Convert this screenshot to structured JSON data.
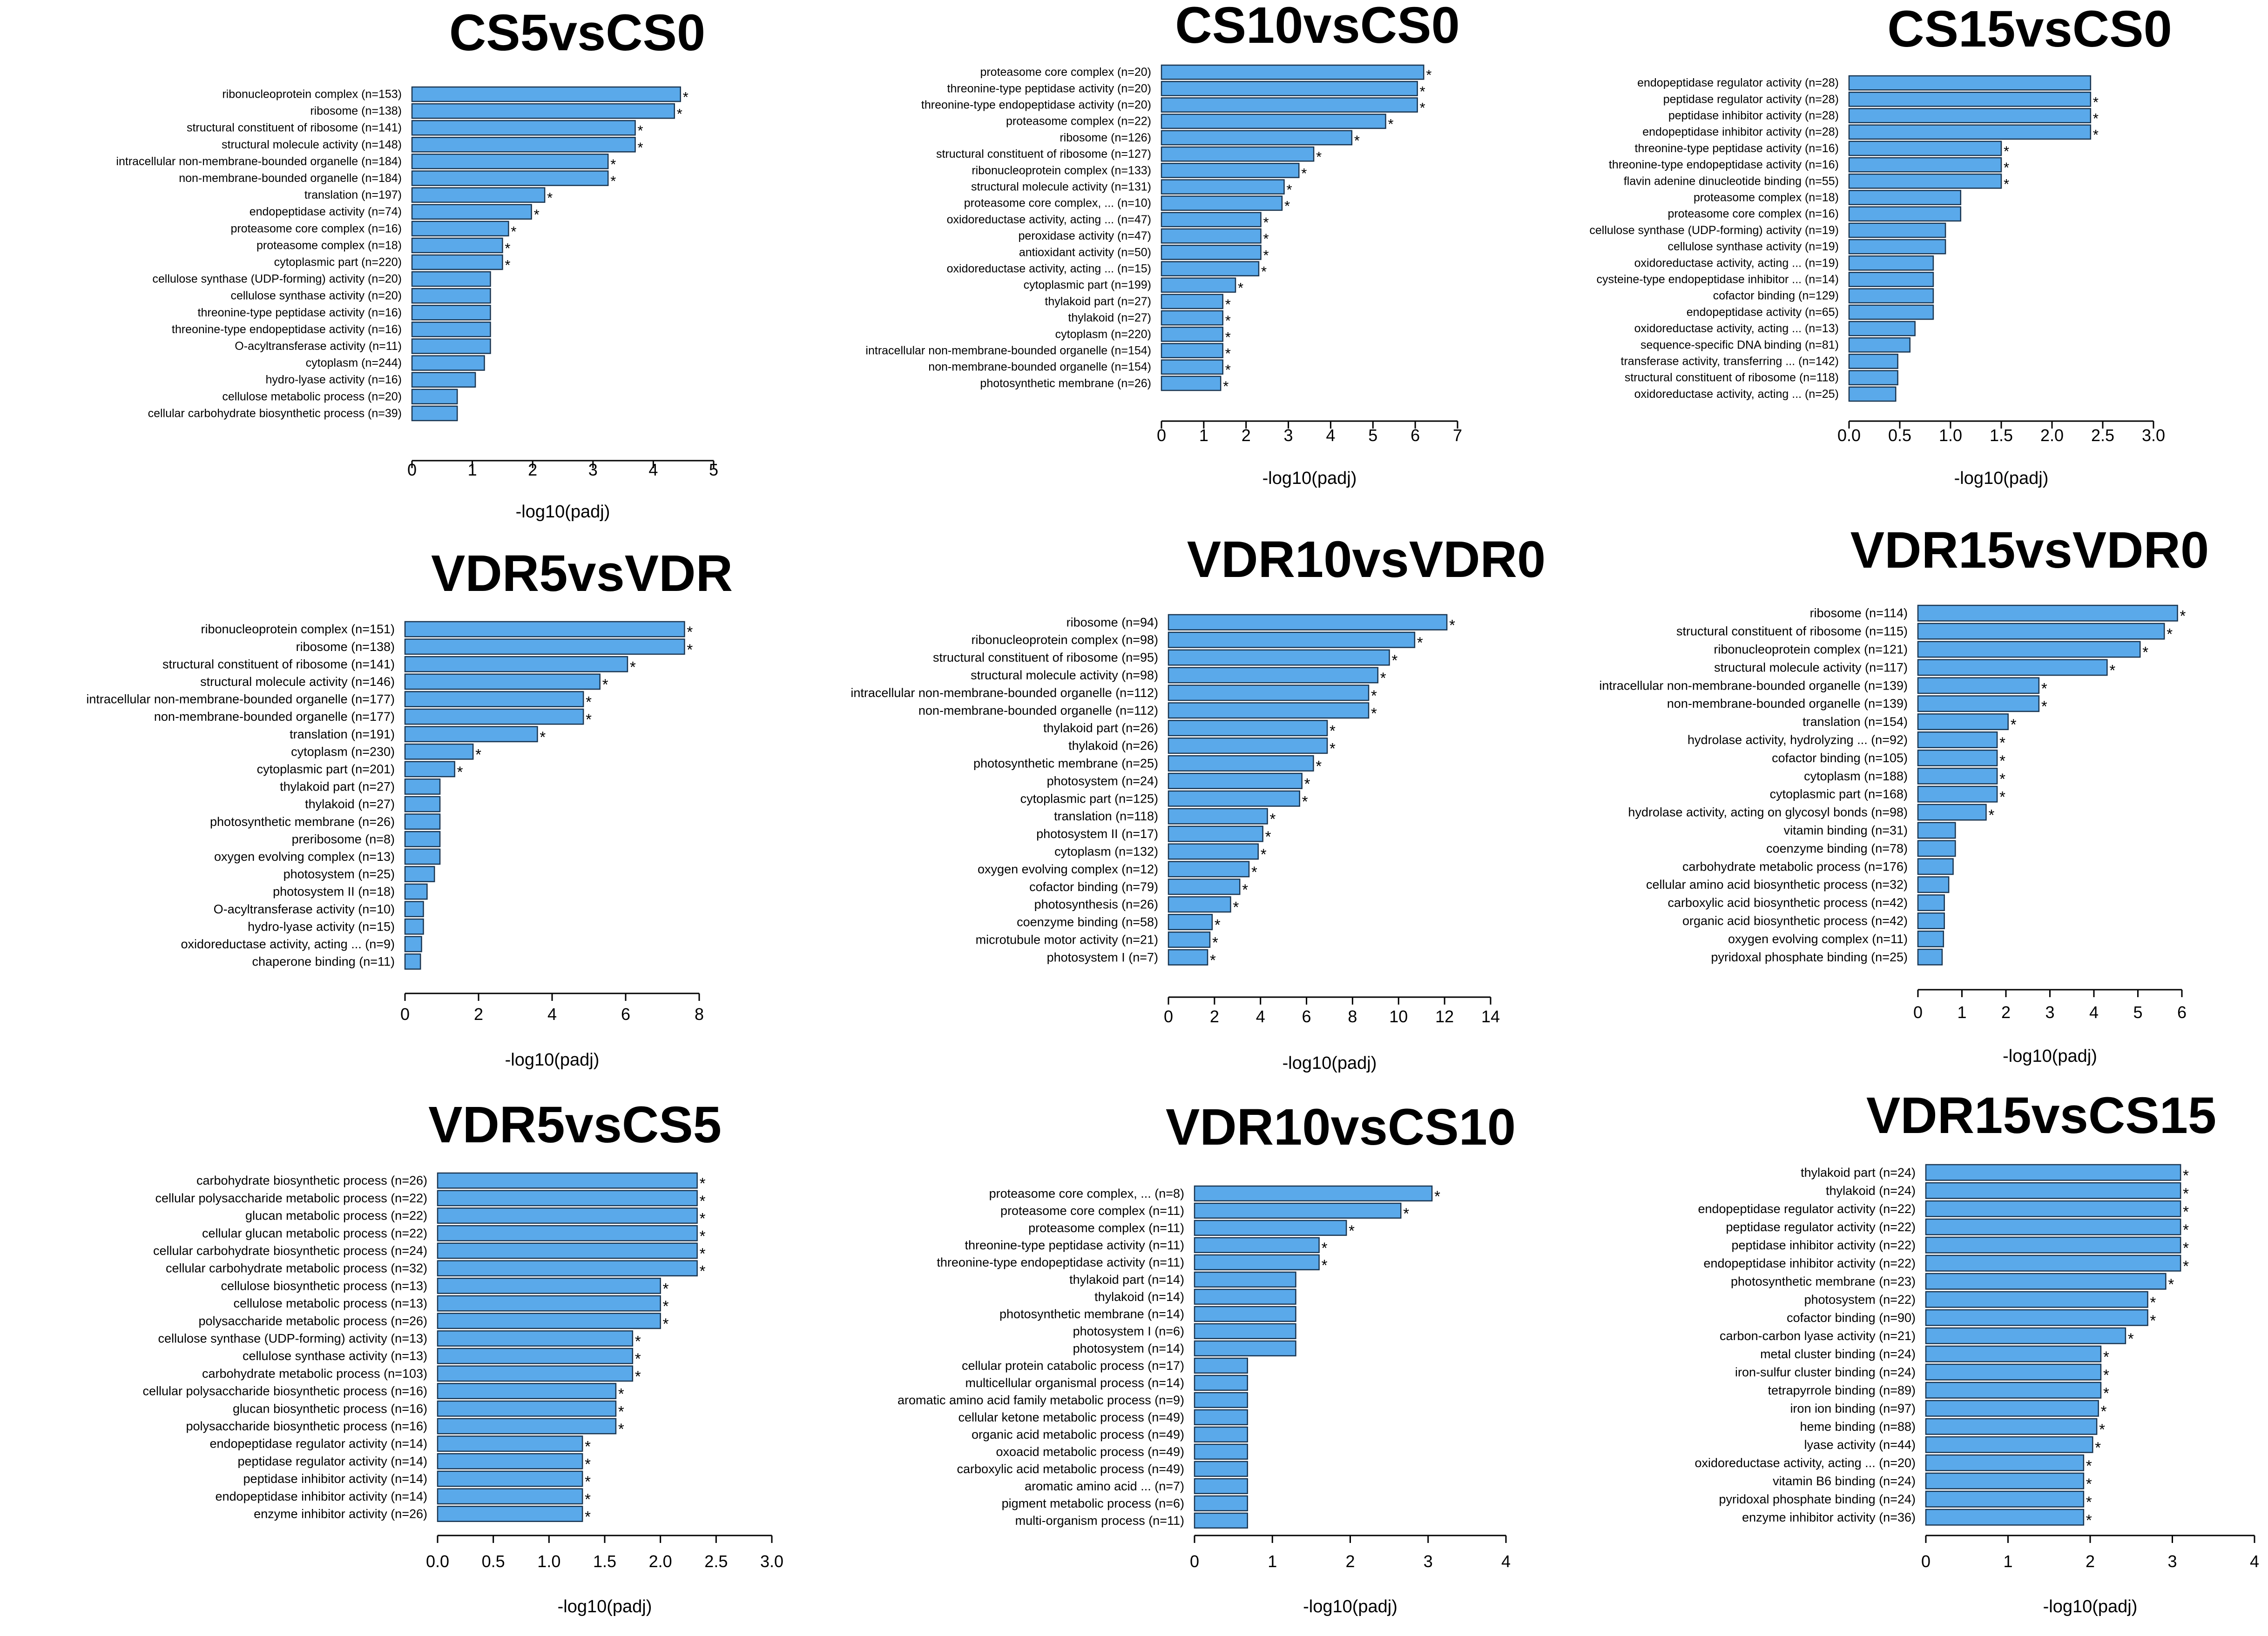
{
  "colors": {
    "bar_fill": "#5aa9ea",
    "bar_stroke": "#1a3550",
    "axis": "#000000",
    "text": "#000000"
  },
  "chart_data": [
    {
      "type": "bar",
      "orientation": "horizontal",
      "title": "CS5vsCS0",
      "xlabel": "-log10(padj)",
      "ylabel": "",
      "xlim": [
        0,
        5
      ],
      "ticks": [
        0,
        1,
        2,
        3,
        4,
        5
      ],
      "tick_labels": [
        "0",
        "1",
        "2",
        "3",
        "4",
        "5"
      ],
      "categories": [
        "ribonucleoprotein complex (n=153)",
        "ribosome (n=138)",
        "structural constituent of ribosome (n=141)",
        "structural molecule activity (n=148)",
        "intracellular non-membrane-bounded organelle (n=184)",
        "non-membrane-bounded organelle (n=184)",
        "translation (n=197)",
        "endopeptidase activity (n=74)",
        "proteasome core complex (n=16)",
        "proteasome complex (n=18)",
        "cytoplasmic part (n=220)",
        "cellulose synthase (UDP-forming) activity (n=20)",
        "cellulose synthase activity (n=20)",
        "threonine-type peptidase activity (n=16)",
        "threonine-type endopeptidase activity (n=16)",
        "O-acyltransferase activity (n=11)",
        "cytoplasm (n=244)",
        "hydro-lyase activity (n=16)",
        "cellulose metabolic process (n=20)",
        "cellular carbohydrate biosynthetic process (n=39)"
      ],
      "values": [
        4.45,
        4.35,
        3.7,
        3.7,
        3.25,
        3.25,
        2.2,
        1.98,
        1.6,
        1.5,
        1.5,
        1.3,
        1.3,
        1.3,
        1.3,
        1.3,
        1.2,
        1.05,
        0.75,
        0.75
      ],
      "significant": [
        true,
        true,
        true,
        true,
        true,
        true,
        true,
        true,
        true,
        true,
        true,
        false,
        false,
        false,
        false,
        false,
        false,
        false,
        false,
        false
      ],
      "star": "*"
    },
    {
      "type": "bar",
      "orientation": "horizontal",
      "title": "CS10vsCS0",
      "xlabel": "-log10(padj)",
      "ylabel": "",
      "xlim": [
        0,
        7
      ],
      "ticks": [
        0,
        1,
        2,
        3,
        4,
        5,
        6,
        7
      ],
      "tick_labels": [
        "0",
        "1",
        "2",
        "3",
        "4",
        "5",
        "6",
        "7"
      ],
      "categories": [
        "proteasome core complex (n=20)",
        "threonine-type peptidase activity (n=20)",
        "threonine-type endopeptidase activity (n=20)",
        "proteasome complex (n=22)",
        "ribosome (n=126)",
        "structural constituent of ribosome (n=127)",
        "ribonucleoprotein complex (n=133)",
        "structural molecule activity (n=131)",
        "proteasome core complex, ... (n=10)",
        "oxidoreductase activity, acting ... (n=47)",
        "peroxidase activity (n=47)",
        "antioxidant activity (n=50)",
        "oxidoreductase activity, acting ... (n=15)",
        "cytoplasmic part (n=199)",
        "thylakoid part (n=27)",
        "thylakoid (n=27)",
        "cytoplasm (n=220)",
        "intracellular non-membrane-bounded organelle (n=154)",
        "non-membrane-bounded organelle (n=154)",
        "photosynthetic membrane (n=26)"
      ],
      "values": [
        6.2,
        6.05,
        6.05,
        5.3,
        4.5,
        3.6,
        3.25,
        2.9,
        2.85,
        2.35,
        2.35,
        2.35,
        2.3,
        1.75,
        1.45,
        1.45,
        1.45,
        1.45,
        1.45,
        1.4
      ],
      "significant": [
        true,
        true,
        true,
        true,
        true,
        true,
        true,
        true,
        true,
        true,
        true,
        true,
        true,
        true,
        true,
        true,
        true,
        true,
        true,
        true
      ],
      "star": "*"
    },
    {
      "type": "bar",
      "orientation": "horizontal",
      "title": "CS15vsCS0",
      "xlabel": "-log10(padj)",
      "ylabel": "",
      "xlim": [
        0,
        3
      ],
      "ticks": [
        0,
        0.5,
        1,
        1.5,
        2,
        2.5,
        3
      ],
      "tick_labels": [
        "0.0",
        "0.5",
        "1.0",
        "1.5",
        "2.0",
        "2.5",
        "3.0"
      ],
      "categories": [
        "endopeptidase regulator activity (n=28)",
        "peptidase regulator activity (n=28)",
        "peptidase inhibitor activity (n=28)",
        "endopeptidase inhibitor activity (n=28)",
        "threonine-type peptidase activity (n=16)",
        "threonine-type endopeptidase activity (n=16)",
        "flavin adenine dinucleotide binding (n=55)",
        "proteasome complex (n=18)",
        "proteasome core complex (n=16)",
        "cellulose synthase (UDP-forming) activity (n=19)",
        "cellulose synthase activity (n=19)",
        "oxidoreductase activity, acting ... (n=19)",
        "cysteine-type endopeptidase inhibitor ... (n=14)",
        "cofactor binding (n=129)",
        "endopeptidase activity (n=65)",
        "oxidoreductase activity, acting ... (n=13)",
        "sequence-specific DNA binding (n=81)",
        "transferase activity, transferring ... (n=142)",
        "structural constituent of ribosome (n=118)",
        "oxidoreductase activity, acting ... (n=25)"
      ],
      "values": [
        2.38,
        2.38,
        2.38,
        2.38,
        1.5,
        1.5,
        1.5,
        1.1,
        1.1,
        0.95,
        0.95,
        0.83,
        0.83,
        0.83,
        0.83,
        0.65,
        0.6,
        0.48,
        0.48,
        0.46
      ],
      "significant": [
        false,
        true,
        true,
        true,
        true,
        true,
        true,
        false,
        false,
        false,
        false,
        false,
        false,
        false,
        false,
        false,
        false,
        false,
        false,
        false
      ],
      "star": "*"
    },
    {
      "type": "bar",
      "orientation": "horizontal",
      "title": "VDR5vsVDR",
      "xlabel": "-log10(padj)",
      "ylabel": "",
      "xlim": [
        0,
        8
      ],
      "ticks": [
        0,
        2,
        4,
        6,
        8
      ],
      "tick_labels": [
        "0",
        "2",
        "4",
        "6",
        "8"
      ],
      "categories": [
        "ribonucleoprotein complex (n=151)",
        "ribosome (n=138)",
        "structural constituent of ribosome (n=141)",
        "structural molecule activity (n=146)",
        "intracellular non-membrane-bounded organelle (n=177)",
        "non-membrane-bounded organelle (n=177)",
        "translation (n=191)",
        "cytoplasm (n=230)",
        "cytoplasmic part (n=201)",
        "thylakoid part (n=27)",
        "thylakoid (n=27)",
        "photosynthetic membrane (n=26)",
        "preribosome (n=8)",
        "oxygen evolving complex (n=13)",
        "photosystem (n=25)",
        "photosystem II (n=18)",
        "O-acyltransferase activity (n=10)",
        "hydro-lyase activity (n=15)",
        "oxidoreductase activity, acting ... (n=9)",
        "chaperone binding (n=11)"
      ],
      "values": [
        7.6,
        7.6,
        6.05,
        5.3,
        4.85,
        4.85,
        3.6,
        1.85,
        1.35,
        0.95,
        0.95,
        0.95,
        0.95,
        0.95,
        0.8,
        0.6,
        0.5,
        0.5,
        0.45,
        0.42
      ],
      "significant": [
        true,
        true,
        true,
        true,
        true,
        true,
        true,
        true,
        true,
        false,
        false,
        false,
        false,
        false,
        false,
        false,
        false,
        false,
        false,
        false
      ],
      "star": "*"
    },
    {
      "type": "bar",
      "orientation": "horizontal",
      "title": "VDR10vsVDR0",
      "xlabel": "-log10(padj)",
      "ylabel": "",
      "xlim": [
        0,
        14
      ],
      "ticks": [
        0,
        2,
        4,
        6,
        8,
        10,
        12,
        14
      ],
      "tick_labels": [
        "0",
        "2",
        "4",
        "6",
        "8",
        "10",
        "12",
        "14"
      ],
      "categories": [
        "ribosome (n=94)",
        "ribonucleoprotein complex (n=98)",
        "structural constituent of ribosome (n=95)",
        "structural molecule activity (n=98)",
        "intracellular non-membrane-bounded organelle (n=112)",
        "non-membrane-bounded organelle (n=112)",
        "thylakoid part (n=26)",
        "thylakoid (n=26)",
        "photosynthetic membrane (n=25)",
        "photosystem (n=24)",
        "cytoplasmic part (n=125)",
        "translation (n=118)",
        "photosystem II (n=17)",
        "cytoplasm (n=132)",
        "oxygen evolving complex (n=12)",
        "cofactor binding (n=79)",
        "photosynthesis (n=26)",
        "coenzyme binding (n=58)",
        "microtubule motor activity (n=21)",
        "photosystem I (n=7)"
      ],
      "values": [
        12.1,
        10.7,
        9.6,
        9.1,
        8.7,
        8.7,
        6.9,
        6.9,
        6.3,
        5.8,
        5.7,
        4.3,
        4.1,
        3.9,
        3.5,
        3.1,
        2.7,
        1.9,
        1.8,
        1.7
      ],
      "significant": [
        true,
        true,
        true,
        true,
        true,
        true,
        true,
        true,
        true,
        true,
        true,
        true,
        true,
        true,
        true,
        true,
        true,
        true,
        true,
        true
      ],
      "star": "*"
    },
    {
      "type": "bar",
      "orientation": "horizontal",
      "title": "VDR15vsVDR0",
      "xlabel": "-log10(padj)",
      "ylabel": "",
      "xlim": [
        0,
        6
      ],
      "ticks": [
        0,
        1,
        2,
        3,
        4,
        5,
        6
      ],
      "tick_labels": [
        "0",
        "1",
        "2",
        "3",
        "4",
        "5",
        "6"
      ],
      "categories": [
        "ribosome (n=114)",
        "structural constituent of ribosome (n=115)",
        "ribonucleoprotein complex (n=121)",
        "structural molecule activity (n=117)",
        "intracellular non-membrane-bounded organelle (n=139)",
        "non-membrane-bounded organelle (n=139)",
        "translation (n=154)",
        "hydrolase activity, hydrolyzing ... (n=92)",
        "cofactor binding (n=105)",
        "cytoplasm (n=188)",
        "cytoplasmic part (n=168)",
        "hydrolase activity, acting on glycosyl bonds (n=98)",
        "vitamin binding (n=31)",
        "coenzyme binding (n=78)",
        "carbohydrate metabolic process (n=176)",
        "cellular amino acid biosynthetic process (n=32)",
        "carboxylic acid biosynthetic process (n=42)",
        "organic acid biosynthetic process (n=42)",
        "oxygen evolving complex (n=11)",
        "pyridoxal phosphate binding (n=25)"
      ],
      "values": [
        5.9,
        5.6,
        5.05,
        4.3,
        2.75,
        2.75,
        2.05,
        1.8,
        1.8,
        1.8,
        1.8,
        1.55,
        0.85,
        0.85,
        0.8,
        0.7,
        0.6,
        0.6,
        0.58,
        0.55
      ],
      "significant": [
        true,
        true,
        true,
        true,
        true,
        true,
        true,
        true,
        true,
        true,
        true,
        true,
        false,
        false,
        false,
        false,
        false,
        false,
        false,
        false
      ],
      "star": "*"
    },
    {
      "type": "bar",
      "orientation": "horizontal",
      "title": "VDR5vsCS5",
      "xlabel": "-log10(padj)",
      "ylabel": "",
      "xlim": [
        0,
        3
      ],
      "ticks": [
        0,
        0.5,
        1,
        1.5,
        2,
        2.5,
        3
      ],
      "tick_labels": [
        "0.0",
        "0.5",
        "1.0",
        "1.5",
        "2.0",
        "2.5",
        "3.0"
      ],
      "categories": [
        "carbohydrate biosynthetic process (n=26)",
        "cellular polysaccharide metabolic process (n=22)",
        "glucan metabolic process (n=22)",
        "cellular glucan metabolic process (n=22)",
        "cellular carbohydrate biosynthetic process (n=24)",
        "cellular carbohydrate metabolic process (n=32)",
        "cellulose biosynthetic process (n=13)",
        "cellulose metabolic process (n=13)",
        "polysaccharide metabolic process (n=26)",
        "cellulose synthase (UDP-forming) activity (n=13)",
        "cellulose synthase activity (n=13)",
        "carbohydrate metabolic process (n=103)",
        "cellular polysaccharide biosynthetic process (n=16)",
        "glucan biosynthetic process (n=16)",
        "polysaccharide biosynthetic process (n=16)",
        "endopeptidase regulator activity (n=14)",
        "peptidase regulator activity (n=14)",
        "peptidase inhibitor activity (n=14)",
        "endopeptidase inhibitor activity (n=14)",
        "enzyme inhibitor activity (n=26)"
      ],
      "values": [
        2.33,
        2.33,
        2.33,
        2.33,
        2.33,
        2.33,
        2.0,
        2.0,
        2.0,
        1.75,
        1.75,
        1.75,
        1.6,
        1.6,
        1.6,
        1.3,
        1.3,
        1.3,
        1.3,
        1.3
      ],
      "significant": [
        true,
        true,
        true,
        true,
        true,
        true,
        true,
        true,
        true,
        true,
        true,
        true,
        true,
        true,
        true,
        true,
        true,
        true,
        true,
        true
      ],
      "star": "*"
    },
    {
      "type": "bar",
      "orientation": "horizontal",
      "title": "VDR10vsCS10",
      "xlabel": "-log10(padj)",
      "ylabel": "",
      "xlim": [
        0,
        4
      ],
      "ticks": [
        0,
        1,
        2,
        3,
        4
      ],
      "tick_labels": [
        "0",
        "1",
        "2",
        "3",
        "4"
      ],
      "categories": [
        "proteasome core complex, ... (n=8)",
        "proteasome core complex (n=11)",
        "proteasome complex (n=11)",
        "threonine-type peptidase activity (n=11)",
        "threonine-type endopeptidase activity (n=11)",
        "thylakoid part (n=14)",
        "thylakoid (n=14)",
        "photosynthetic membrane (n=14)",
        "photosystem I (n=6)",
        "photosystem (n=14)",
        "cellular protein catabolic process (n=17)",
        "multicellular organismal process (n=14)",
        "aromatic amino acid family metabolic process (n=9)",
        "cellular ketone metabolic process (n=49)",
        "organic acid metabolic process (n=49)",
        "oxoacid metabolic process (n=49)",
        "carboxylic acid metabolic process (n=49)",
        "aromatic amino acid ... (n=7)",
        "pigment metabolic process (n=6)",
        "multi-organism process (n=11)"
      ],
      "values": [
        3.05,
        2.65,
        1.95,
        1.6,
        1.6,
        1.3,
        1.3,
        1.3,
        1.3,
        1.3,
        0.68,
        0.68,
        0.68,
        0.68,
        0.68,
        0.68,
        0.68,
        0.68,
        0.68,
        0.68
      ],
      "significant": [
        true,
        true,
        true,
        true,
        true,
        false,
        false,
        false,
        false,
        false,
        false,
        false,
        false,
        false,
        false,
        false,
        false,
        false,
        false,
        false
      ],
      "star": "*"
    },
    {
      "type": "bar",
      "orientation": "horizontal",
      "title": "VDR15vsCS15",
      "xlabel": "-log10(padj)",
      "ylabel": "",
      "xlim": [
        0,
        4
      ],
      "ticks": [
        0,
        1,
        2,
        3,
        4
      ],
      "tick_labels": [
        "0",
        "1",
        "2",
        "3",
        "4"
      ],
      "categories": [
        "thylakoid part (n=24)",
        "thylakoid (n=24)",
        "endopeptidase regulator activity (n=22)",
        "peptidase regulator activity (n=22)",
        "peptidase inhibitor activity (n=22)",
        "endopeptidase inhibitor activity (n=22)",
        "photosynthetic membrane (n=23)",
        "photosystem (n=22)",
        "cofactor binding (n=90)",
        "carbon-carbon lyase activity (n=21)",
        "metal cluster binding (n=24)",
        "iron-sulfur cluster binding (n=24)",
        "tetrapyrrole binding (n=89)",
        "iron ion binding (n=97)",
        "heme binding (n=88)",
        "lyase activity (n=44)",
        "oxidoreductase activity, acting ... (n=20)",
        "vitamin B6 binding (n=24)",
        "pyridoxal phosphate binding (n=24)",
        "enzyme inhibitor activity (n=36)"
      ],
      "values": [
        3.1,
        3.1,
        3.1,
        3.1,
        3.1,
        3.1,
        2.92,
        2.7,
        2.7,
        2.43,
        2.13,
        2.13,
        2.13,
        2.1,
        2.08,
        2.03,
        1.92,
        1.92,
        1.92,
        1.92
      ],
      "significant": [
        true,
        true,
        true,
        true,
        true,
        true,
        true,
        true,
        true,
        true,
        true,
        true,
        true,
        true,
        true,
        true,
        true,
        true,
        true,
        true
      ],
      "star": "*"
    }
  ]
}
